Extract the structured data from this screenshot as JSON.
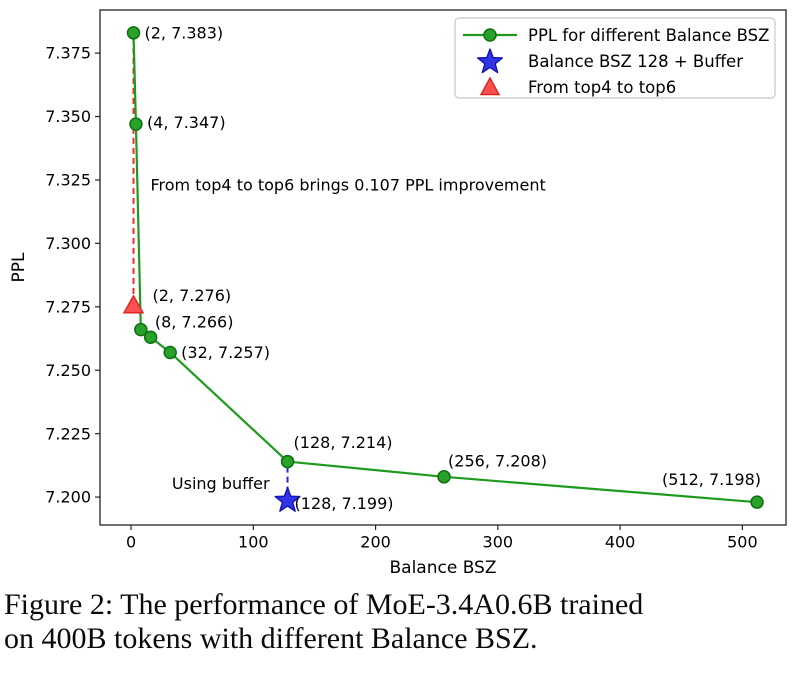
{
  "figure": {
    "caption_line1": "Figure 2: The performance of MoE-3.4A0.6B trained",
    "caption_line2": "on 400B tokens with different Balance BSZ."
  },
  "chart_data": {
    "type": "line",
    "title": "",
    "xlabel": "Balance BSZ",
    "ylabel": "PPL",
    "xlim": [
      -25.4,
      535.7
    ],
    "ylim": [
      7.189,
      7.392
    ],
    "grid": false,
    "legend_position": "upper right",
    "xticks": {
      "values": [
        0,
        100,
        200,
        300,
        400,
        500
      ],
      "labels": [
        "0",
        "100",
        "200",
        "300",
        "400",
        "500"
      ]
    },
    "yticks": {
      "values": [
        7.2,
        7.225,
        7.25,
        7.275,
        7.3,
        7.325,
        7.35,
        7.375
      ],
      "labels": [
        "7.200",
        "7.225",
        "7.250",
        "7.275",
        "7.300",
        "7.325",
        "7.350",
        "7.375"
      ]
    },
    "series": [
      {
        "name": "PPL for different Balance BSZ",
        "type": "line+marker",
        "marker": "circle",
        "color": "#1e9b1e",
        "marker_fill": "#28a228",
        "marker_edge": "#0e700e",
        "points": [
          [
            2,
            7.383
          ],
          [
            4,
            7.347
          ],
          [
            8,
            7.266
          ],
          [
            16,
            7.263
          ],
          [
            32,
            7.257
          ],
          [
            128,
            7.214
          ],
          [
            256,
            7.208
          ],
          [
            512,
            7.198
          ]
        ]
      },
      {
        "name": "Balance BSZ 128 + Buffer",
        "type": "marker",
        "marker": "star",
        "color": "#3232e6",
        "marker_edge": "#1414b4",
        "points": [
          [
            128,
            7.199
          ]
        ]
      },
      {
        "name": "From top4 to top6",
        "type": "marker",
        "marker": "triangle",
        "color": "#fa5050",
        "marker_edge": "#dd2222",
        "points": [
          [
            2,
            7.276
          ]
        ]
      }
    ],
    "connectors": [
      {
        "id": "red-dashed-drop",
        "style": "dashed",
        "color": "#e5332a",
        "from": [
          2,
          7.383
        ],
        "to": [
          2,
          7.276
        ]
      },
      {
        "id": "blue-dashed-drop",
        "style": "dashed",
        "color": "#2424e0",
        "from": [
          128,
          7.214
        ],
        "to": [
          128,
          7.199
        ]
      }
    ],
    "annotations": [
      {
        "id": "pt-2-7383",
        "text": "(2, 7.383)",
        "x": 2,
        "y": 7.383
      },
      {
        "id": "pt-4-7347",
        "text": "(4, 7.347)",
        "x": 4,
        "y": 7.347
      },
      {
        "id": "note-improvement",
        "text": "From top4 to top6 brings 0.107 PPL improvement",
        "x": 2,
        "y": 7.323
      },
      {
        "id": "pt-2-7276",
        "text": "(2, 7.276)",
        "x": 2,
        "y": 7.276
      },
      {
        "id": "pt-8-7266",
        "text": "(8, 7.266)",
        "x": 8,
        "y": 7.266
      },
      {
        "id": "pt-32-7257",
        "text": "(32, 7.257)",
        "x": 32,
        "y": 7.257
      },
      {
        "id": "pt-128-7214",
        "text": "(128, 7.214)",
        "x": 128,
        "y": 7.214
      },
      {
        "id": "note-using-buffer",
        "text": "Using buffer",
        "x": 128,
        "y": 7.199
      },
      {
        "id": "pt-128-7199",
        "text": "(128, 7.199)",
        "x": 128,
        "y": 7.199
      },
      {
        "id": "pt-256-7208",
        "text": "(256, 7.208)",
        "x": 256,
        "y": 7.208
      },
      {
        "id": "pt-512-7198",
        "text": "(512, 7.198)",
        "x": 512,
        "y": 7.198
      }
    ],
    "legend": [
      {
        "label": "PPL for different Balance BSZ",
        "marker": "line-circle",
        "color": "#1e9b1e",
        "fill": "#28a228",
        "edge": "#0e700e"
      },
      {
        "label": "Balance BSZ 128 + Buffer",
        "marker": "star",
        "color": "#3232e6",
        "fill": "#3232e6",
        "edge": "#1414b4"
      },
      {
        "label": "From top4 to top6",
        "marker": "triangle",
        "color": "#fa5050",
        "fill": "#fa5050",
        "edge": "#dd2222"
      }
    ]
  }
}
